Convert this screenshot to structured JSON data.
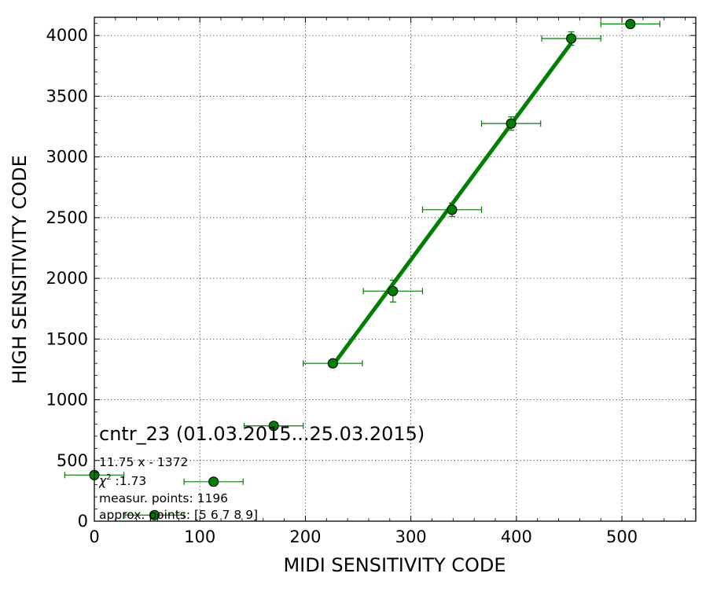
{
  "chart_data": {
    "type": "scatter",
    "xlabel": "MIDI SENSITIVITY CODE",
    "ylabel": "HIGH SENSITIVITY CODE",
    "xlim": [
      0,
      570
    ],
    "ylim": [
      0,
      4150
    ],
    "xticks": [
      0,
      100,
      200,
      300,
      400,
      500
    ],
    "yticks": [
      0,
      500,
      1000,
      1500,
      2000,
      2500,
      3000,
      3500,
      4000
    ],
    "grid": true,
    "colors": {
      "marker": "#008000",
      "line": "#008000",
      "errorbar": "#008000"
    },
    "points": [
      {
        "x": 0,
        "y": 380,
        "xerr": 28,
        "yerr": 0
      },
      {
        "x": 57,
        "y": 50,
        "xerr": 28,
        "yerr": 0
      },
      {
        "x": 113,
        "y": 325,
        "xerr": 28,
        "yerr": 0
      },
      {
        "x": 170,
        "y": 785,
        "xerr": 28,
        "yerr": 0
      },
      {
        "x": 226,
        "y": 1300,
        "xerr": 28,
        "yerr": 15
      },
      {
        "x": 283,
        "y": 1895,
        "xerr": 28,
        "yerr": 90
      },
      {
        "x": 339,
        "y": 2565,
        "xerr": 28,
        "yerr": 55
      },
      {
        "x": 395,
        "y": 3275,
        "xerr": 28,
        "yerr": 55
      },
      {
        "x": 452,
        "y": 3975,
        "xerr": 28,
        "yerr": 55
      },
      {
        "x": 508,
        "y": 4095,
        "xerr": 28,
        "yerr": 0
      }
    ],
    "fit": {
      "slope": 11.75,
      "intercept": -1372,
      "x_range": [
        226,
        452
      ]
    },
    "annotations": {
      "title": "cntr_23 (01.03.2015...25.03.2015)",
      "equation": "11.75 x - 1372",
      "chi2_symbol": "χ",
      "chi2_exp": "2",
      "chi2_value": " :1.73",
      "measur_points": "measur. points: 1196",
      "approx_points": "approx. points: [5 6 7 8 9]"
    }
  }
}
